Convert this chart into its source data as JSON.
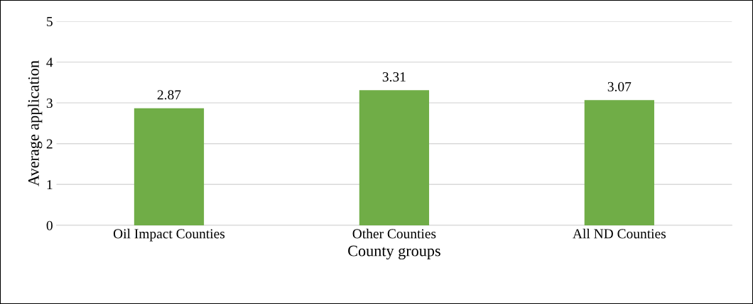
{
  "chart_data": {
    "type": "bar",
    "xlabel": "County groups",
    "ylabel": "Average application",
    "categories": [
      "Oil Impact Counties",
      "Other Counties",
      "All ND Counties"
    ],
    "values": [
      2.87,
      3.31,
      3.07
    ],
    "color": "#70ad47",
    "ylim": [
      0,
      5
    ],
    "yticks": [
      0,
      1,
      2,
      3,
      4,
      5
    ],
    "grid": "y",
    "data_labels": true,
    "legend": false
  }
}
